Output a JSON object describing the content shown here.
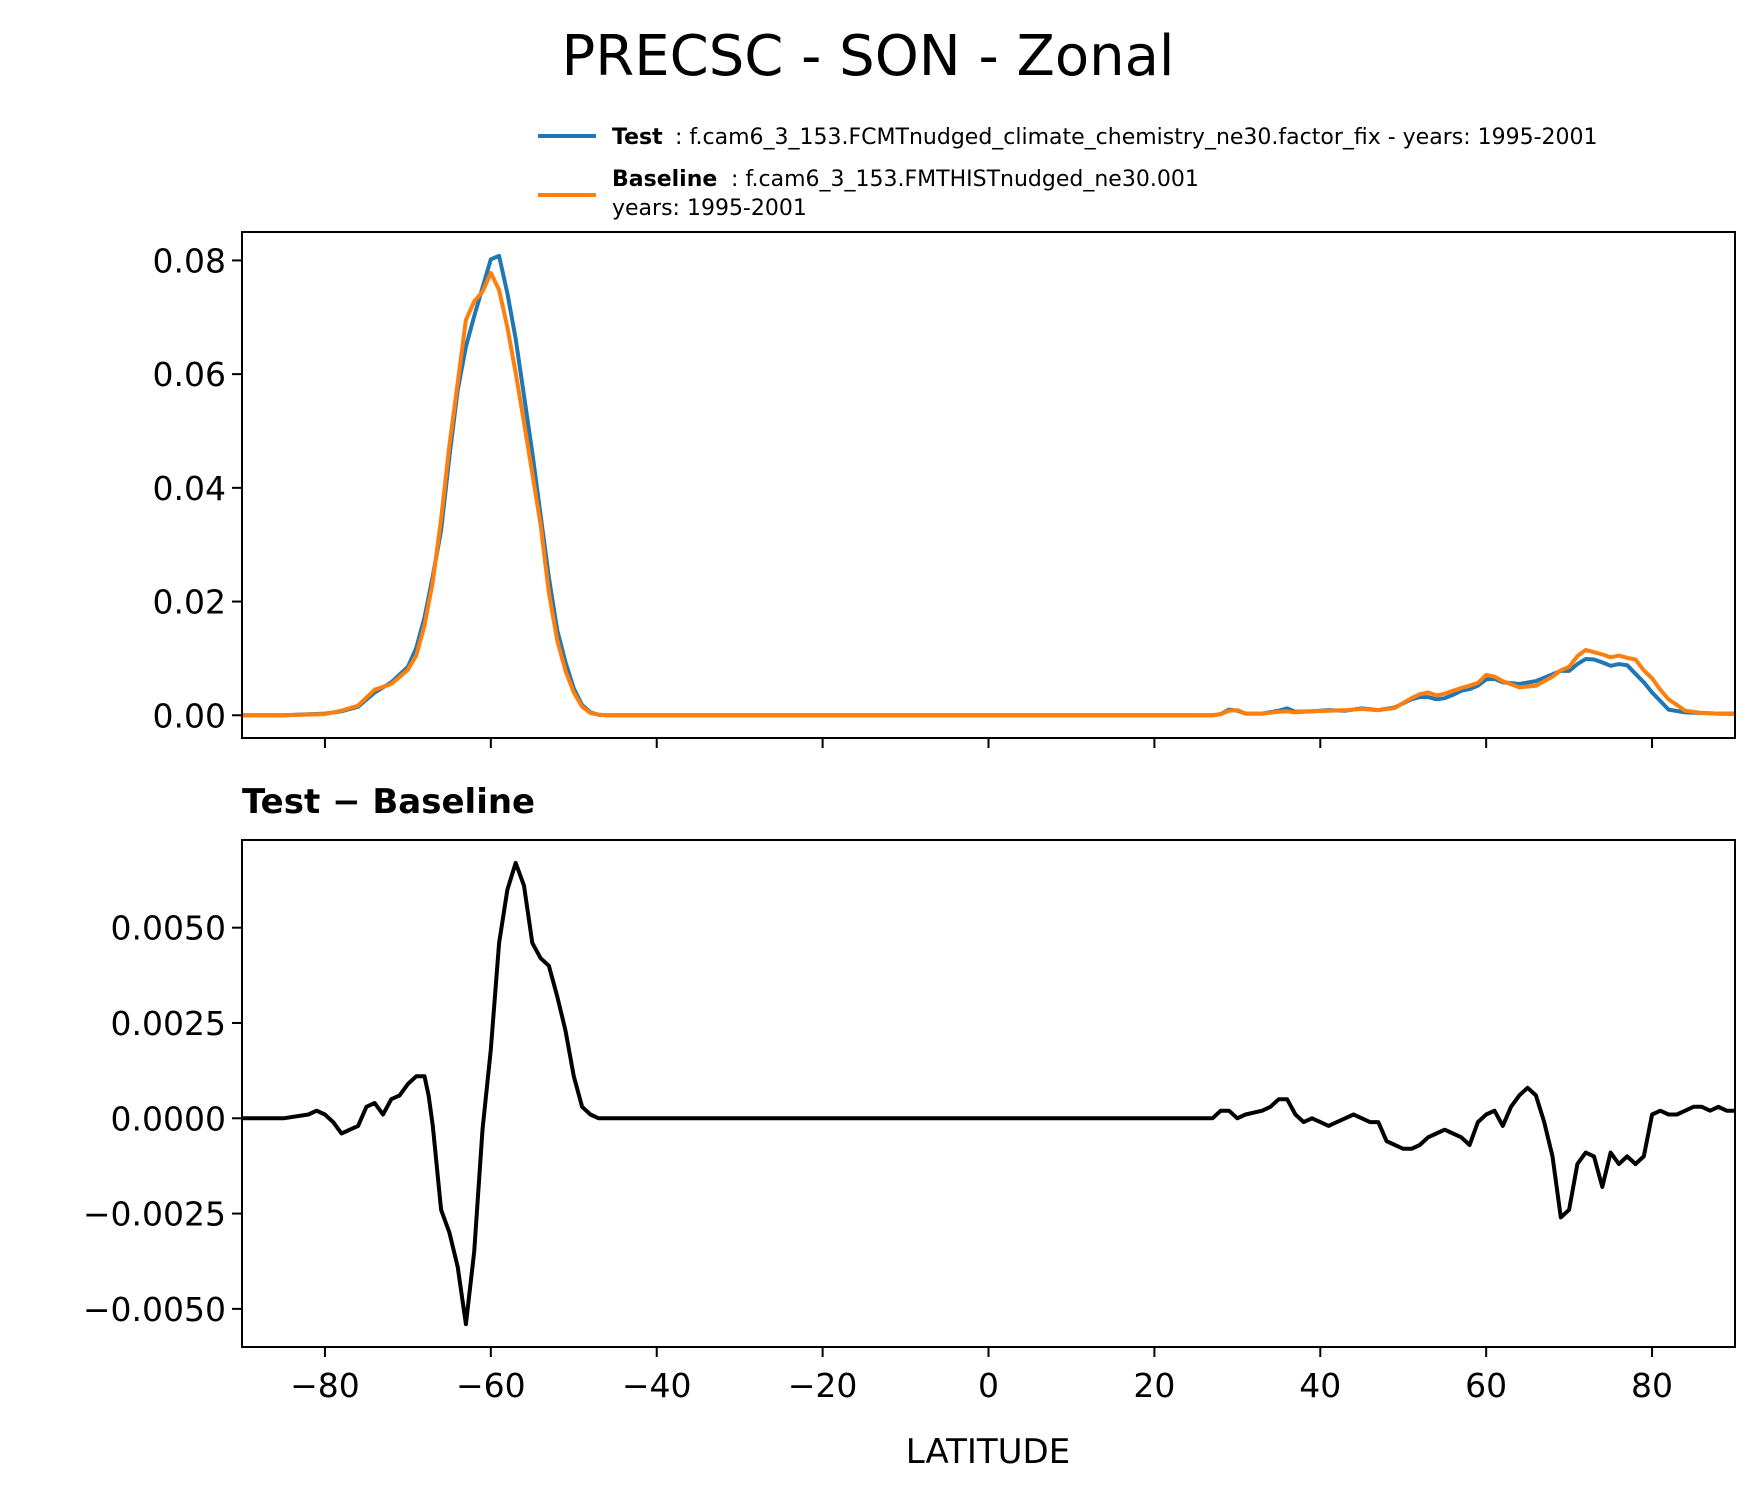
{
  "chart_data": {
    "type": "line",
    "title": "PRECSC - SON - Zonal",
    "xlabel": "LATITUDE",
    "xlim": [
      -90,
      90
    ],
    "x_ticks": [
      -80,
      -60,
      -40,
      -20,
      0,
      20,
      40,
      60,
      80
    ],
    "x_tick_labels": [
      "−80",
      "−60",
      "−40",
      "−20",
      "0",
      "20",
      "40",
      "60",
      "80"
    ],
    "legend": {
      "entries": [
        {
          "bold": "Test",
          "text": ": f.cam6_3_153.FCMTnudged_climate_chemistry_ne30.factor_fix - years: 1995-2001",
          "color": "#1f77b4"
        },
        {
          "bold": "Baseline",
          "text": ": f.cam6_3_153.FMTHISTnudged_ne30.001",
          "text2": "years: 1995-2001",
          "color": "#ff7f0e"
        }
      ]
    },
    "panels": [
      {
        "name": "top",
        "ylim": [
          -0.004,
          0.085
        ],
        "y_ticks": [
          0.0,
          0.02,
          0.04,
          0.06,
          0.08
        ],
        "y_tick_labels": [
          "0.00",
          "0.02",
          "0.04",
          "0.06",
          "0.08"
        ],
        "series": [
          {
            "name": "Test",
            "color": "#1f77b4",
            "x": [
              -90,
              -85,
              -80,
              -78,
              -76,
              -74,
              -72,
              -70,
              -69,
              -68,
              -67,
              -66,
              -65,
              -64,
              -63,
              -62,
              -61,
              -60,
              -59,
              -58,
              -57,
              -56,
              -55,
              -54,
              -53,
              -52,
              -51,
              -50,
              -49,
              -48,
              -47,
              -46,
              -44,
              -40,
              -30,
              -20,
              -10,
              0,
              10,
              20,
              27,
              28,
              29,
              30,
              31,
              33,
              35,
              36,
              37,
              39,
              41,
              43,
              45,
              47,
              49,
              51,
              52,
              53,
              54,
              55,
              56,
              57,
              58,
              59,
              60,
              61,
              62,
              64,
              66,
              68,
              69,
              70,
              71,
              72,
              73,
              74,
              75,
              76,
              77,
              78,
              79,
              80,
              81,
              82,
              84,
              86,
              88,
              90
            ],
            "values": [
              0,
              0,
              0.0003,
              0.0007,
              0.0015,
              0.004,
              0.0058,
              0.0085,
              0.0118,
              0.0172,
              0.0245,
              0.0325,
              0.0455,
              0.0572,
              0.0648,
              0.0702,
              0.0752,
              0.0802,
              0.0808,
              0.0742,
              0.0662,
              0.0562,
              0.0462,
              0.0352,
              0.0242,
              0.015,
              0.0093,
              0.0047,
              0.0018,
              0.0005,
              0.0001,
              0,
              0,
              0,
              0,
              0,
              0,
              0,
              0,
              0,
              0,
              0.0002,
              0.001,
              0.0008,
              0.0003,
              0.0003,
              0.0008,
              0.0012,
              0.0006,
              0.0007,
              0.0009,
              0.0008,
              0.0012,
              0.0009,
              0.0014,
              0.0028,
              0.0032,
              0.0032,
              0.0028,
              0.003,
              0.0036,
              0.0043,
              0.0046,
              0.0052,
              0.0063,
              0.0064,
              0.0058,
              0.0055,
              0.006,
              0.0072,
              0.0078,
              0.0078,
              0.009,
              0.0099,
              0.0098,
              0.0093,
              0.0087,
              0.009,
              0.0088,
              0.0073,
              0.0058,
              0.004,
              0.0025,
              0.001,
              0.0005,
              0.0004,
              0.0003,
              0.0003
            ]
          },
          {
            "name": "Baseline",
            "color": "#ff7f0e",
            "x": [
              -90,
              -85,
              -80,
              -78,
              -76,
              -74,
              -72,
              -70,
              -69,
              -68,
              -67,
              -66,
              -65,
              -64,
              -63,
              -62,
              -61,
              -60,
              -59,
              -58,
              -57,
              -56,
              -55,
              -54,
              -53,
              -52,
              -51,
              -50,
              -49,
              -48,
              -47,
              -46,
              -44,
              -40,
              -30,
              -20,
              -10,
              0,
              10,
              20,
              27,
              28,
              29,
              30,
              31,
              33,
              35,
              36,
              37,
              39,
              41,
              43,
              45,
              47,
              49,
              51,
              52,
              53,
              54,
              55,
              56,
              57,
              58,
              59,
              60,
              61,
              62,
              64,
              66,
              68,
              69,
              70,
              71,
              72,
              73,
              74,
              75,
              76,
              77,
              78,
              79,
              80,
              81,
              82,
              84,
              86,
              88,
              90
            ],
            "values": [
              0,
              0,
              0.0002,
              0.0008,
              0.0017,
              0.0045,
              0.0055,
              0.008,
              0.0105,
              0.0158,
              0.0235,
              0.0345,
              0.0475,
              0.0585,
              0.0695,
              0.0728,
              0.0745,
              0.0778,
              0.0748,
              0.0682,
              0.0602,
              0.0515,
              0.0425,
              0.0335,
              0.0215,
              0.0132,
              0.0078,
              0.004,
              0.0015,
              0.0004,
              0.0001,
              0,
              0,
              0,
              0,
              0,
              0,
              0,
              0,
              0,
              0,
              0.0002,
              0.0008,
              0.0009,
              0.0003,
              0.0003,
              0.0006,
              0.0007,
              0.0005,
              0.0007,
              0.0008,
              0.0009,
              0.0011,
              0.0009,
              0.0013,
              0.003,
              0.0037,
              0.004,
              0.0035,
              0.0038,
              0.0043,
              0.0048,
              0.0052,
              0.0057,
              0.0071,
              0.0068,
              0.006,
              0.0049,
              0.0052,
              0.0068,
              0.0079,
              0.0085,
              0.0104,
              0.0115,
              0.0111,
              0.0107,
              0.0102,
              0.0105,
              0.0101,
              0.0098,
              0.0079,
              0.0065,
              0.0045,
              0.0028,
              0.0008,
              0.0004,
              0.0003,
              0.0002
            ]
          }
        ]
      },
      {
        "name": "bottom",
        "subtitle": "Test − Baseline",
        "ylim": [
          -0.006,
          0.0073
        ],
        "y_ticks": [
          -0.005,
          -0.0025,
          0.0,
          0.0025,
          0.005
        ],
        "y_tick_labels": [
          "−0.0050",
          "−0.0025",
          "0.0000",
          "0.0025",
          "0.0050"
        ],
        "series": [
          {
            "name": "Test - Baseline",
            "color": "#000000",
            "x": [
              -90,
              -85,
              -82,
              -81,
              -80,
              -79,
              -78,
              -77,
              -76,
              -75,
              -74,
              -73,
              -72,
              -71,
              -70,
              -69,
              -68,
              -67.5,
              -67,
              -66,
              -65,
              -64,
              -63,
              -62,
              -61,
              -60,
              -59,
              -58,
              -57,
              -56,
              -55,
              -54,
              -53,
              -52,
              -51,
              -50,
              -49,
              -48,
              -47,
              -45,
              -40,
              -30,
              -25,
              -20,
              -10,
              0,
              10,
              20,
              27,
              28,
              29,
              30,
              31,
              33,
              34,
              35,
              36,
              37,
              38,
              39,
              40,
              41,
              42,
              43,
              44,
              45,
              46,
              47,
              48,
              49,
              50,
              51,
              52,
              53,
              54,
              55,
              56,
              57,
              58,
              59,
              60,
              61,
              62,
              63,
              64,
              65,
              66,
              67,
              68,
              69,
              70,
              71,
              72,
              73,
              74,
              75,
              76,
              77,
              78,
              79,
              80,
              81,
              82,
              83,
              84,
              85,
              86,
              87,
              88,
              89,
              90
            ],
            "values": [
              0,
              0,
              0.0001,
              0.0002,
              0.0001,
              -0.0001,
              -0.0004,
              -0.0003,
              -0.0002,
              0.0003,
              0.0004,
              0.0001,
              0.0005,
              0.0006,
              0.0009,
              0.0011,
              0.0011,
              0.0006,
              -0.0002,
              -0.0024,
              -0.003,
              -0.0039,
              -0.0054,
              -0.0035,
              -0.0003,
              0.0018,
              0.0046,
              0.006,
              0.0067,
              0.0061,
              0.0046,
              0.0042,
              0.004,
              0.0032,
              0.0023,
              0.0011,
              0.0003,
              0.0001,
              0,
              0,
              0,
              0,
              0,
              0,
              0,
              0,
              0,
              0,
              0,
              0.0002,
              0.0002,
              0,
              0.0001,
              0.0002,
              0.0003,
              0.0005,
              0.0005,
              0.0001,
              -0.0001,
              0,
              -0.0001,
              -0.0002,
              -0.0001,
              0,
              0.0001,
              0,
              -0.0001,
              -0.0001,
              -0.0006,
              -0.0007,
              -0.0008,
              -0.0008,
              -0.0007,
              -0.0005,
              -0.0004,
              -0.0003,
              -0.0004,
              -0.0005,
              -0.0007,
              -0.0001,
              0.0001,
              0.0002,
              -0.0002,
              0.0003,
              0.0006,
              0.0008,
              0.0006,
              -0.0001,
              -0.001,
              -0.0026,
              -0.0024,
              -0.0012,
              -0.0009,
              -0.001,
              -0.0018,
              -0.0009,
              -0.0012,
              -0.001,
              -0.0012,
              -0.001,
              0.0001,
              0.0002,
              0.0001,
              0.0001,
              0.0002,
              0.0003,
              0.0003,
              0.0002,
              0.0003,
              0.0002,
              0.0002
            ]
          }
        ]
      }
    ]
  }
}
